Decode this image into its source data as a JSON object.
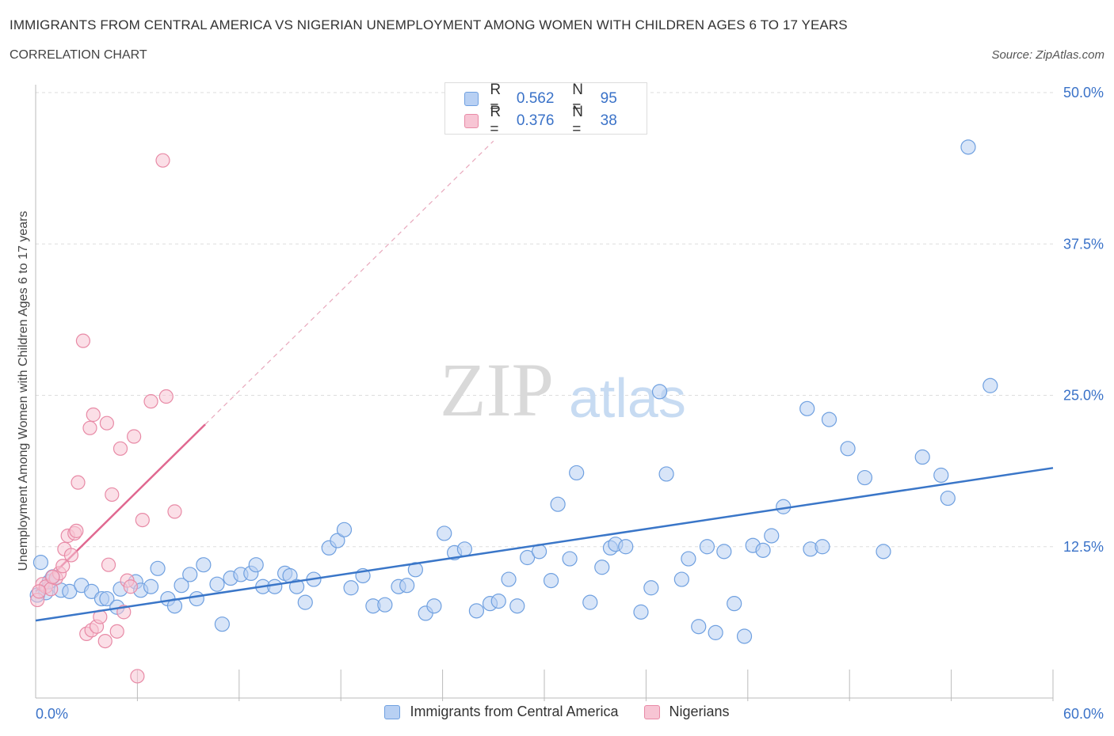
{
  "header": {
    "title": "IMMIGRANTS FROM CENTRAL AMERICA VS NIGERIAN UNEMPLOYMENT AMONG WOMEN WITH CHILDREN AGES 6 TO 17 YEARS",
    "subtitle": "CORRELATION CHART",
    "source": "Source: ZipAtlas.com"
  },
  "watermark": {
    "zip": "ZIP",
    "atlas": "atlas"
  },
  "legend": {
    "r_label": "R =",
    "n_label": "N =",
    "series": [
      {
        "name": "Immigrants from Central America",
        "r": "0.562",
        "n": "95",
        "color": "#6fa0e0",
        "fill": "#b8d0f3"
      },
      {
        "name": "Nigerians",
        "r": "0.376",
        "n": "38",
        "color": "#e88aa6",
        "fill": "#f7c5d4"
      }
    ]
  },
  "colors": {
    "blue_line": "#3a76c8",
    "pink_line": "#e06890",
    "tick_text": "#3a72c8",
    "grid": "#dddddd"
  },
  "chart_data": {
    "type": "scatter",
    "title": "IMMIGRANTS FROM CENTRAL AMERICA VS NIGERIAN UNEMPLOYMENT AMONG WOMEN WITH CHILDREN AGES 6 TO 17 YEARS",
    "xlabel": "",
    "ylabel": "Unemployment Among Women with Children Ages 6 to 17 years",
    "xlim": [
      0,
      60
    ],
    "ylim": [
      0,
      50
    ],
    "x_tick_labels": [
      "0.0%",
      "60.0%"
    ],
    "y_ticks": [
      12.5,
      25.0,
      37.5,
      50.0
    ],
    "y_tick_labels": [
      "12.5%",
      "25.0%",
      "37.5%",
      "50.0%"
    ],
    "grid": "horizontal dashed",
    "legend_position": "top-center",
    "series": [
      {
        "name": "Immigrants from Central America",
        "trend": {
          "x": [
            0,
            60
          ],
          "y": [
            6.4,
            19.0
          ]
        },
        "points": [
          [
            0.3,
            11.2
          ],
          [
            0.6,
            8.7
          ],
          [
            0.8,
            9.6
          ],
          [
            1.0,
            10.0
          ],
          [
            1.5,
            8.9
          ],
          [
            2.0,
            8.8
          ],
          [
            2.7,
            9.3
          ],
          [
            3.3,
            8.8
          ],
          [
            3.9,
            8.2
          ],
          [
            4.2,
            8.2
          ],
          [
            4.8,
            7.5
          ],
          [
            5.0,
            9.0
          ],
          [
            5.9,
            9.6
          ],
          [
            6.2,
            8.9
          ],
          [
            6.8,
            9.2
          ],
          [
            7.2,
            10.7
          ],
          [
            7.8,
            8.2
          ],
          [
            8.2,
            7.6
          ],
          [
            8.6,
            9.3
          ],
          [
            9.1,
            10.2
          ],
          [
            9.5,
            8.2
          ],
          [
            9.9,
            11.0
          ],
          [
            10.7,
            9.4
          ],
          [
            11.0,
            6.1
          ],
          [
            11.5,
            9.9
          ],
          [
            12.1,
            10.2
          ],
          [
            12.7,
            10.3
          ],
          [
            13.0,
            11.0
          ],
          [
            13.4,
            9.2
          ],
          [
            14.1,
            9.2
          ],
          [
            14.7,
            10.3
          ],
          [
            15.0,
            10.1
          ],
          [
            15.4,
            9.2
          ],
          [
            15.9,
            7.9
          ],
          [
            16.4,
            9.8
          ],
          [
            17.3,
            12.4
          ],
          [
            17.8,
            13.0
          ],
          [
            18.2,
            13.9
          ],
          [
            18.6,
            9.1
          ],
          [
            19.3,
            10.1
          ],
          [
            19.9,
            7.6
          ],
          [
            20.6,
            7.7
          ],
          [
            21.4,
            9.2
          ],
          [
            21.9,
            9.3
          ],
          [
            22.4,
            10.6
          ],
          [
            23.0,
            7.0
          ],
          [
            23.5,
            7.6
          ],
          [
            24.1,
            13.6
          ],
          [
            24.7,
            12.0
          ],
          [
            25.3,
            12.3
          ],
          [
            26.0,
            7.2
          ],
          [
            26.8,
            7.8
          ],
          [
            27.3,
            8.0
          ],
          [
            27.9,
            9.8
          ],
          [
            28.4,
            7.6
          ],
          [
            29.0,
            11.6
          ],
          [
            29.7,
            12.1
          ],
          [
            30.4,
            9.7
          ],
          [
            30.8,
            16.0
          ],
          [
            31.5,
            11.5
          ],
          [
            31.9,
            18.6
          ],
          [
            32.7,
            7.9
          ],
          [
            33.4,
            10.8
          ],
          [
            33.9,
            12.4
          ],
          [
            34.2,
            12.7
          ],
          [
            34.8,
            12.5
          ],
          [
            35.7,
            7.1
          ],
          [
            36.3,
            9.1
          ],
          [
            36.8,
            25.3
          ],
          [
            37.2,
            18.5
          ],
          [
            38.1,
            9.8
          ],
          [
            38.5,
            11.5
          ],
          [
            39.1,
            5.9
          ],
          [
            39.6,
            12.5
          ],
          [
            40.1,
            5.4
          ],
          [
            40.6,
            12.1
          ],
          [
            41.2,
            7.8
          ],
          [
            41.8,
            5.1
          ],
          [
            42.3,
            12.6
          ],
          [
            42.9,
            12.2
          ],
          [
            43.4,
            13.4
          ],
          [
            44.1,
            15.8
          ],
          [
            45.5,
            23.9
          ],
          [
            45.7,
            12.3
          ],
          [
            46.4,
            12.5
          ],
          [
            46.8,
            23.0
          ],
          [
            47.9,
            20.6
          ],
          [
            48.9,
            18.2
          ],
          [
            50.0,
            12.1
          ],
          [
            52.3,
            19.9
          ],
          [
            53.4,
            18.4
          ],
          [
            53.8,
            16.5
          ],
          [
            55.0,
            45.5
          ],
          [
            56.3,
            25.8
          ],
          [
            0.1,
            8.5
          ]
        ]
      },
      {
        "name": "Nigerians",
        "trend": {
          "x": [
            0,
            10
          ],
          "y": [
            8.8,
            22.6
          ]
        },
        "trend_extension": {
          "x": [
            10,
            27
          ],
          "y": [
            22.6,
            46.0
          ]
        },
        "points": [
          [
            0.1,
            8.1
          ],
          [
            0.4,
            9.4
          ],
          [
            0.6,
            9.2
          ],
          [
            0.9,
            9.0
          ],
          [
            1.2,
            9.9
          ],
          [
            1.4,
            10.3
          ],
          [
            1.6,
            10.9
          ],
          [
            1.7,
            12.3
          ],
          [
            1.9,
            13.4
          ],
          [
            2.1,
            11.8
          ],
          [
            2.3,
            13.6
          ],
          [
            2.4,
            13.8
          ],
          [
            2.5,
            17.8
          ],
          [
            2.8,
            29.5
          ],
          [
            3.0,
            5.3
          ],
          [
            3.2,
            22.3
          ],
          [
            3.3,
            5.6
          ],
          [
            3.4,
            23.4
          ],
          [
            3.6,
            5.9
          ],
          [
            3.8,
            6.7
          ],
          [
            4.1,
            4.7
          ],
          [
            4.2,
            22.7
          ],
          [
            4.3,
            11.0
          ],
          [
            4.5,
            16.8
          ],
          [
            4.8,
            5.5
          ],
          [
            5.0,
            20.6
          ],
          [
            5.2,
            7.1
          ],
          [
            5.4,
            9.7
          ],
          [
            5.6,
            9.2
          ],
          [
            5.8,
            21.6
          ],
          [
            6.0,
            1.8
          ],
          [
            6.3,
            14.7
          ],
          [
            6.8,
            24.5
          ],
          [
            7.5,
            44.4
          ],
          [
            7.7,
            24.9
          ],
          [
            8.2,
            15.4
          ],
          [
            0.2,
            8.8
          ],
          [
            1.0,
            10.0
          ]
        ]
      }
    ]
  }
}
